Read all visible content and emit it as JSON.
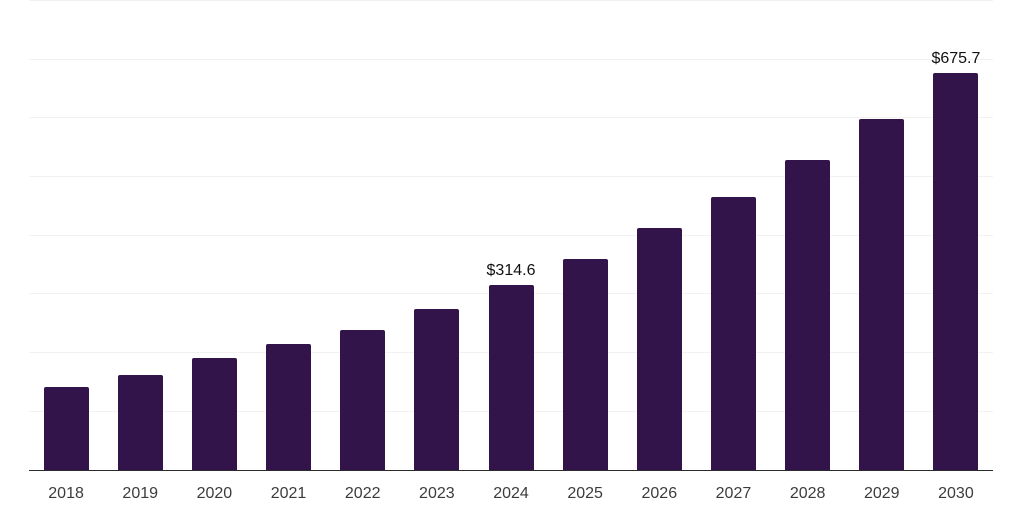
{
  "chart_data": {
    "type": "bar",
    "title": "",
    "xlabel": "",
    "ylabel": "",
    "categories": [
      "2018",
      "2019",
      "2020",
      "2021",
      "2022",
      "2023",
      "2024",
      "2025",
      "2026",
      "2027",
      "2028",
      "2029",
      "2030"
    ],
    "values": [
      141.0,
      160.9,
      189.4,
      213.3,
      237.7,
      273.6,
      314.6,
      358.9,
      411.3,
      465.2,
      527.8,
      597.8,
      675.7
    ],
    "bar_labels": [
      "",
      "",
      "",
      "",
      "",
      "",
      "$314.6",
      "",
      "",
      "",
      "",
      "",
      "$675.7"
    ],
    "ylim": [
      0,
      800
    ],
    "grid_interval": 100,
    "grid": "horizontal-only",
    "legend": "none",
    "y_tick_labels_visible": false,
    "colors": {
      "bar": "#32134a",
      "axis_line": "#2b2b2b",
      "gridline": "#f2f2f2",
      "bar_label_text": "#111111",
      "tick_label_text": "#3c3c3c",
      "background": "#ffffff"
    }
  }
}
